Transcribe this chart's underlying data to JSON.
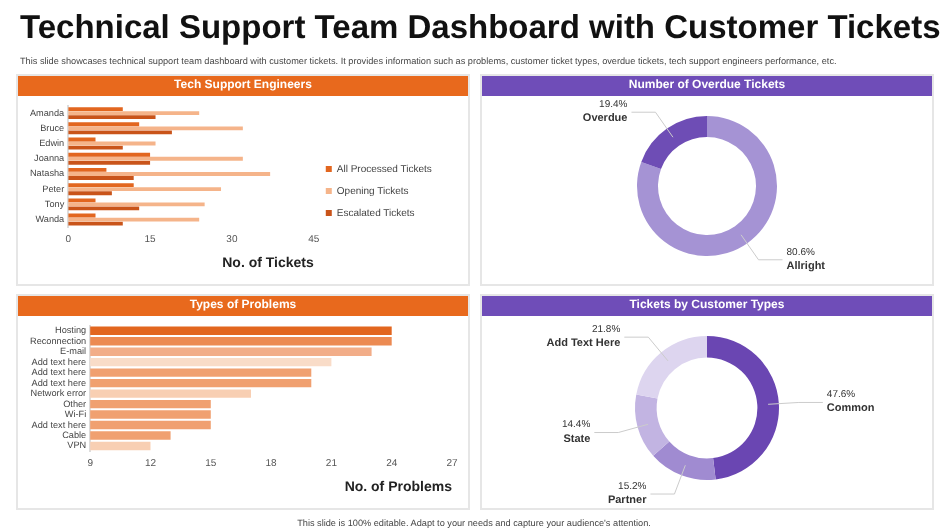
{
  "chart_data": [
    {
      "type": "other",
      "title": "Technical Support Team Dashboard with Customer Tickets",
      "subtitle": "This slide showcases technical support team dashboard with customer tickets. It provides information such as problems, customer ticket types, overdue tickets, tech support engineers performance, etc.",
      "annotations": [
        "This slide is 100% editable. Adapt to your needs and capture your audience's attention."
      ]
    },
    {
      "type": "bar",
      "orientation": "horizontal",
      "title": "Tech Support Engineers",
      "xlabel": "No. of Tickets",
      "categories": [
        "Amanda",
        "Bruce",
        "Edwin",
        "Joanna",
        "Natasha",
        "Peter",
        "Tony",
        "Wanda"
      ],
      "series": [
        {
          "name": "All Processed Tickets",
          "color": "#e2661f",
          "values": [
            10,
            13,
            5,
            15,
            7,
            12,
            5,
            5
          ]
        },
        {
          "name": "Opening Tickets",
          "color": "#f5b48a",
          "values": [
            24,
            32,
            16,
            32,
            37,
            28,
            25,
            24
          ]
        },
        {
          "name": "Escalated Tickets",
          "color": "#c9541a",
          "values": [
            16,
            19,
            10,
            15,
            12,
            8,
            13,
            10
          ]
        }
      ],
      "xlim": [
        0,
        45
      ],
      "xticks": [
        0,
        15,
        30,
        45
      ],
      "legend": "right",
      "grid": false
    },
    {
      "type": "donut",
      "title": "Number of Overdue Tickets",
      "categories": [
        "Allright",
        "Overdue"
      ],
      "values": [
        80.6,
        19.4
      ],
      "colors": [
        "#a593d4",
        "#6e4db5"
      ],
      "value_labels": [
        "80.6%",
        "19.4%"
      ]
    },
    {
      "type": "bar",
      "orientation": "horizontal",
      "title": "Types of Problems",
      "xlabel": "No. of Problems",
      "categories": [
        "Hosting",
        "Reconnection",
        "E-mail",
        "Add text here",
        "Add text here",
        "Add text here",
        "Network error",
        "Other",
        "Wi-Fi",
        "Add text here",
        "Cable",
        "VPN"
      ],
      "values": [
        24,
        24,
        23,
        21,
        20,
        20,
        17,
        15,
        15,
        15,
        13,
        12
      ],
      "colors": [
        "#e2661f",
        "#ec8a52",
        "#f2ad88",
        "#f9dcc8",
        "#f0a070",
        "#f0a070",
        "#f8cfb3",
        "#f0a070",
        "#f0a070",
        "#f0a070",
        "#f0a070",
        "#f8cfb3"
      ],
      "xlim": [
        9,
        27
      ],
      "xticks": [
        9,
        12,
        15,
        18,
        21,
        24,
        27
      ],
      "grid": false
    },
    {
      "type": "donut",
      "title": "Tickets by Customer Types",
      "categories": [
        "Common",
        "Partner",
        "State",
        "Add Text Here"
      ],
      "values": [
        47.6,
        15.2,
        14.4,
        21.8
      ],
      "colors": [
        "#6a46b2",
        "#a08bd1",
        "#c2b4e2",
        "#ddd5ef"
      ],
      "value_labels": [
        "47.6%",
        "15.2%",
        "14.4%",
        "21.8%"
      ]
    }
  ]
}
